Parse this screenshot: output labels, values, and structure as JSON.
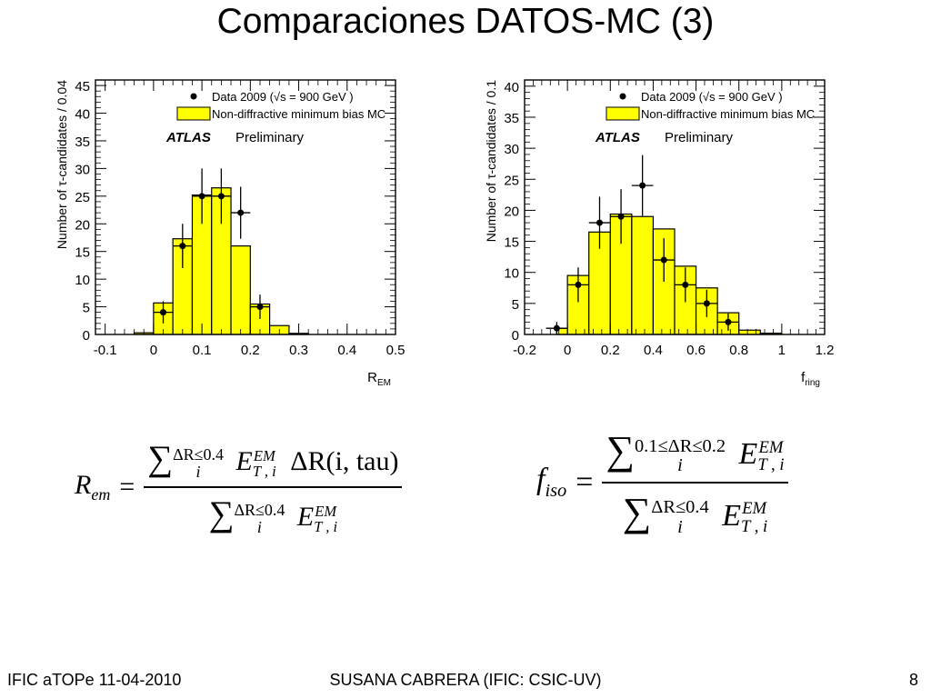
{
  "slide": {
    "title": "Comparaciones DATOS-MC (3)",
    "footer_left": "IFIC aTOPe  11-04-2010",
    "footer_center": "SUSANA CABRERA (IFIC: CSIC-UV)",
    "footer_right": "8"
  },
  "formulas": {
    "rem": {
      "lhs_base": "R",
      "lhs_sub": "em",
      "eq": "=",
      "sum": "∑",
      "sum_upper": "ΔR≤0.4",
      "sum_lower": "i",
      "e_base": "E",
      "e_sup": "EM",
      "e_sub": "T , i",
      "extra": "ΔR(i, tau)"
    },
    "fiso": {
      "lhs_base": "f",
      "lhs_sub": "iso",
      "eq": "=",
      "sum": "∑",
      "num_upper": "0.1≤ΔR≤0.2",
      "den_upper": "ΔR≤0.4",
      "sum_lower": "i",
      "e_base": "E",
      "e_sup": "EM",
      "e_sub": "T , i"
    }
  },
  "colors": {
    "mc_fill": "#ffff00",
    "frame": "#000000",
    "data_marker": "#000000"
  },
  "chart_data": [
    {
      "type": "bar",
      "ylabel": "Number of τ-candidates / 0.04",
      "xlabel_base": "R",
      "xlabel_sub": "EM",
      "xlim": [
        -0.12,
        0.5
      ],
      "ylim": [
        0,
        46
      ],
      "xticks": [
        -0.1,
        0,
        0.1,
        0.2,
        0.3,
        0.4,
        0.5
      ],
      "xtick_labels": [
        "-0.1",
        "0",
        "0.1",
        "0.2",
        "0.3",
        "0.4",
        "0.5"
      ],
      "yticks": [
        0,
        5,
        10,
        15,
        20,
        25,
        30,
        35,
        40,
        45
      ],
      "ytick_labels": [
        "0",
        "5",
        "10",
        "15",
        "20",
        "25",
        "30",
        "35",
        "40",
        "45"
      ],
      "legend": {
        "data_label": "Data 2009 (√s = 900 GeV )",
        "mc_label": "Non-diffractive minimum bias MC",
        "atlas": "ATLAS",
        "preliminary": "Preliminary",
        "placement": "top-right"
      },
      "mc_bins": [
        {
          "x0": -0.04,
          "x1": 0.0,
          "y": 0.3
        },
        {
          "x0": 0.0,
          "x1": 0.04,
          "y": 5.7
        },
        {
          "x0": 0.04,
          "x1": 0.08,
          "y": 17.3
        },
        {
          "x0": 0.08,
          "x1": 0.12,
          "y": 25.2
        },
        {
          "x0": 0.12,
          "x1": 0.16,
          "y": 26.5
        },
        {
          "x0": 0.16,
          "x1": 0.2,
          "y": 16.0
        },
        {
          "x0": 0.2,
          "x1": 0.24,
          "y": 5.5
        },
        {
          "x0": 0.24,
          "x1": 0.28,
          "y": 1.6
        },
        {
          "x0": 0.28,
          "x1": 0.32,
          "y": 0.2
        }
      ],
      "data_points": [
        {
          "x": 0.02,
          "y": 4,
          "err": 2
        },
        {
          "x": 0.06,
          "y": 16,
          "err": 4
        },
        {
          "x": 0.1,
          "y": 25,
          "err": 5
        },
        {
          "x": 0.14,
          "y": 25,
          "err": 5
        },
        {
          "x": 0.18,
          "y": 22,
          "err": 4.7
        },
        {
          "x": 0.22,
          "y": 5,
          "err": 2.2
        }
      ],
      "xerr": 0.02
    },
    {
      "type": "bar",
      "ylabel": "Number of τ-candidates / 0.1",
      "xlabel_base": "f",
      "xlabel_sub": "ring",
      "xlim": [
        -0.2,
        1.2
      ],
      "ylim": [
        0,
        41
      ],
      "xticks": [
        -0.2,
        0,
        0.2,
        0.4,
        0.6,
        0.8,
        1.0,
        1.2
      ],
      "xtick_labels": [
        "-0.2",
        "0",
        "0.2",
        "0.4",
        "0.6",
        "0.8",
        "1",
        "1.2"
      ],
      "yticks": [
        0,
        5,
        10,
        15,
        20,
        25,
        30,
        35,
        40
      ],
      "ytick_labels": [
        "0",
        "5",
        "10",
        "15",
        "20",
        "25",
        "30",
        "35",
        "40"
      ],
      "legend": {
        "data_label": "Data 2009 (√s = 900 GeV )",
        "mc_label": "Non-diffractive minimum bias MC",
        "atlas": "ATLAS",
        "preliminary": "Preliminary",
        "placement": "top-right"
      },
      "mc_bins": [
        {
          "x0": -0.05,
          "x1": 0.0,
          "y": 1.0
        },
        {
          "x0": 0.0,
          "x1": 0.1,
          "y": 9.5
        },
        {
          "x0": 0.1,
          "x1": 0.2,
          "y": 16.5
        },
        {
          "x0": 0.2,
          "x1": 0.3,
          "y": 19.4
        },
        {
          "x0": 0.3,
          "x1": 0.4,
          "y": 19.0
        },
        {
          "x0": 0.4,
          "x1": 0.5,
          "y": 17.0
        },
        {
          "x0": 0.5,
          "x1": 0.6,
          "y": 11.0
        },
        {
          "x0": 0.6,
          "x1": 0.7,
          "y": 7.5
        },
        {
          "x0": 0.7,
          "x1": 0.8,
          "y": 3.5
        },
        {
          "x0": 0.8,
          "x1": 0.9,
          "y": 0.7
        },
        {
          "x0": 0.9,
          "x1": 1.0,
          "y": 0.2
        }
      ],
      "data_points": [
        {
          "x": -0.05,
          "y": 1,
          "err": 1
        },
        {
          "x": 0.05,
          "y": 8,
          "err": 2.8
        },
        {
          "x": 0.15,
          "y": 18,
          "err": 4.2
        },
        {
          "x": 0.25,
          "y": 19,
          "err": 4.4
        },
        {
          "x": 0.35,
          "y": 24,
          "err": 4.9
        },
        {
          "x": 0.45,
          "y": 12,
          "err": 3.5
        },
        {
          "x": 0.55,
          "y": 8,
          "err": 2.8
        },
        {
          "x": 0.65,
          "y": 5,
          "err": 2.2
        },
        {
          "x": 0.75,
          "y": 2,
          "err": 1.4
        }
      ],
      "xerr": 0.05
    }
  ]
}
